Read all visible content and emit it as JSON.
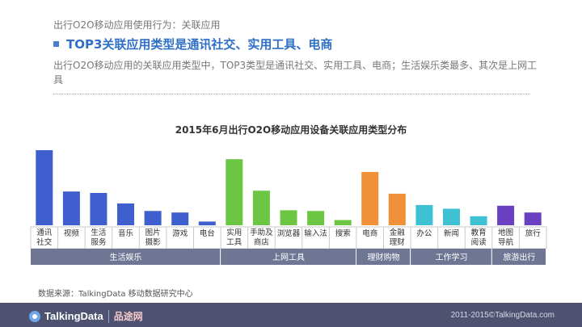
{
  "header": {
    "subtitle": "出行O2O移动应用使用行为：关联应用",
    "headline": "TOP3关联应用类型是通讯社交、实用工具、电商",
    "description": "出行O2O移动应用的关联应用类型中，TOP3类型是通讯社交、实用工具、电商；生活娱乐类最多、其次是上网工具"
  },
  "chart_data": {
    "type": "bar",
    "title": "2015年6月出行O2O移动应用设备关联应用类型分布",
    "categories": [
      "通讯社交",
      "视频",
      "生活服务",
      "音乐",
      "图片摄影",
      "游戏",
      "电台",
      "实用工具",
      "手助及商店",
      "浏览器",
      "输入法",
      "搜索",
      "电商",
      "金融理财",
      "办公",
      "新闻",
      "教育阅读",
      "地图导航",
      "旅行"
    ],
    "tick_labels": [
      [
        "通讯",
        "社交"
      ],
      [
        "视频"
      ],
      [
        "生活",
        "服务"
      ],
      [
        "音乐"
      ],
      [
        "图片",
        "摄影"
      ],
      [
        "游戏"
      ],
      [
        "电台"
      ],
      [
        "实用",
        "工具"
      ],
      [
        "手助及",
        "商店"
      ],
      [
        "浏览器"
      ],
      [
        "输入法"
      ],
      [
        "搜索"
      ],
      [
        "电商"
      ],
      [
        "金融",
        "理财"
      ],
      [
        "办公"
      ],
      [
        "新闻"
      ],
      [
        "教育",
        "阅读"
      ],
      [
        "地图",
        "导航"
      ],
      [
        "旅行"
      ]
    ],
    "values": [
      100,
      45,
      43,
      29,
      19,
      17,
      5,
      88,
      46,
      20,
      19,
      7,
      71,
      42,
      27,
      22,
      12,
      26,
      17
    ],
    "groups": [
      {
        "name": "生活娱乐",
        "start": 0,
        "end": 6,
        "color": "#3f5fcf"
      },
      {
        "name": "上网工具",
        "start": 7,
        "end": 11,
        "color": "#6cc644"
      },
      {
        "name": "理财购物",
        "start": 12,
        "end": 13,
        "color": "#f0913a"
      },
      {
        "name": "工作学习",
        "start": 14,
        "end": 16,
        "color": "#3ec1d3"
      },
      {
        "name": "旅游出行",
        "start": 17,
        "end": 18,
        "color": "#6a3fc2"
      }
    ],
    "y_axis_shown": false,
    "ylim": [
      0,
      100
    ]
  },
  "source": "数据来源：TalkingData 移动数据研究中心",
  "footer": {
    "logo": "TalkingData",
    "partner": "品途网",
    "copyright": "2011-2015©TalkingData.com"
  }
}
